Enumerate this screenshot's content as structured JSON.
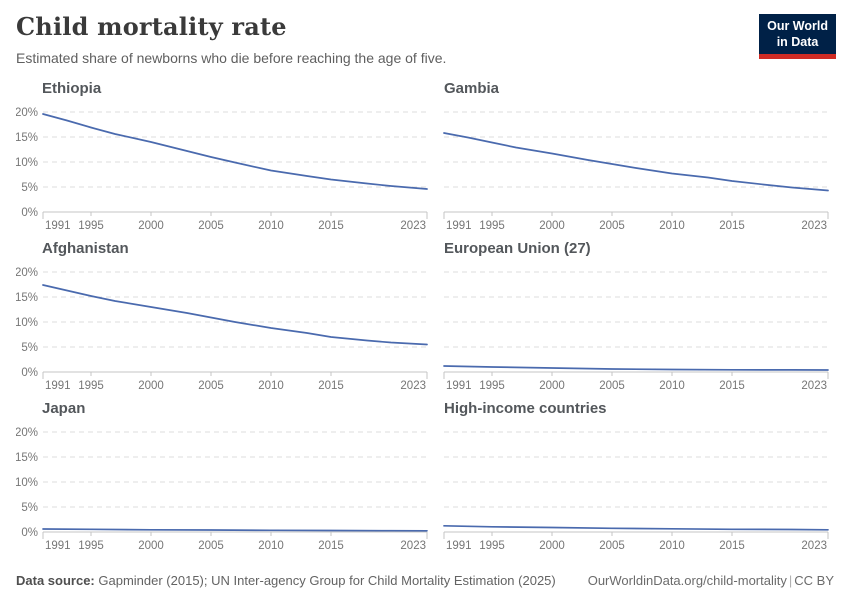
{
  "header": {
    "title": "Child mortality rate",
    "subtitle": "Estimated share of newborns who die before reaching the age of five.",
    "logo": {
      "line1": "Our World",
      "line2": "in Data",
      "bg_color": "#002147",
      "accent_color": "#cf2b24"
    }
  },
  "footer": {
    "source_label": "Data source:",
    "source_text": "Gapminder (2015); UN Inter-agency Group for Child Mortality Estimation (2025)",
    "url": "OurWorldinData.org/child-mortality",
    "separator": "|",
    "license": "CC BY"
  },
  "chart_data": {
    "type": "line",
    "title": "Child mortality rate",
    "subtitle": "Estimated share of newborns who die before reaching the age of five.",
    "xlabel": "",
    "ylabel": "",
    "x_range": [
      1991,
      2023
    ],
    "xticks": [
      1991,
      1995,
      2000,
      2005,
      2010,
      2015,
      2023
    ],
    "ylim": [
      0,
      20
    ],
    "yticks": [
      0,
      5,
      10,
      15,
      20
    ],
    "y_unit": "%",
    "grid": true,
    "legend": "none",
    "line_color": "#4a6aae",
    "facets": [
      {
        "title": "Ethiopia",
        "show_y_labels": true,
        "series": [
          [
            1991,
            19.6
          ],
          [
            1993,
            18.3
          ],
          [
            1995,
            16.9
          ],
          [
            1997,
            15.6
          ],
          [
            2000,
            14.0
          ],
          [
            2003,
            12.2
          ],
          [
            2005,
            11.0
          ],
          [
            2007,
            9.9
          ],
          [
            2010,
            8.3
          ],
          [
            2013,
            7.2
          ],
          [
            2015,
            6.5
          ],
          [
            2018,
            5.7
          ],
          [
            2020,
            5.2
          ],
          [
            2023,
            4.6
          ]
        ]
      },
      {
        "title": "Gambia",
        "show_y_labels": false,
        "series": [
          [
            1991,
            15.8
          ],
          [
            1993,
            14.9
          ],
          [
            1995,
            13.9
          ],
          [
            1997,
            12.9
          ],
          [
            2000,
            11.7
          ],
          [
            2003,
            10.4
          ],
          [
            2005,
            9.6
          ],
          [
            2007,
            8.8
          ],
          [
            2010,
            7.7
          ],
          [
            2013,
            6.9
          ],
          [
            2015,
            6.2
          ],
          [
            2018,
            5.4
          ],
          [
            2020,
            4.9
          ],
          [
            2023,
            4.3
          ]
        ]
      },
      {
        "title": "Afghanistan",
        "show_y_labels": true,
        "series": [
          [
            1991,
            17.4
          ],
          [
            1993,
            16.3
          ],
          [
            1995,
            15.2
          ],
          [
            1997,
            14.2
          ],
          [
            2000,
            13.0
          ],
          [
            2003,
            11.8
          ],
          [
            2005,
            10.9
          ],
          [
            2007,
            10.0
          ],
          [
            2010,
            8.8
          ],
          [
            2013,
            7.8
          ],
          [
            2015,
            7.0
          ],
          [
            2018,
            6.3
          ],
          [
            2020,
            5.9
          ],
          [
            2023,
            5.5
          ]
        ]
      },
      {
        "title": "European Union (27)",
        "show_y_labels": false,
        "series": [
          [
            1991,
            1.2
          ],
          [
            1995,
            1.0
          ],
          [
            2000,
            0.8
          ],
          [
            2005,
            0.6
          ],
          [
            2010,
            0.5
          ],
          [
            2015,
            0.45
          ],
          [
            2020,
            0.42
          ],
          [
            2023,
            0.4
          ]
        ]
      },
      {
        "title": "Japan",
        "show_y_labels": true,
        "series": [
          [
            1991,
            0.6
          ],
          [
            1995,
            0.55
          ],
          [
            2000,
            0.45
          ],
          [
            2005,
            0.4
          ],
          [
            2010,
            0.35
          ],
          [
            2015,
            0.3
          ],
          [
            2020,
            0.27
          ],
          [
            2023,
            0.25
          ]
        ]
      },
      {
        "title": "High-income countries",
        "show_y_labels": false,
        "series": [
          [
            1991,
            1.25
          ],
          [
            1995,
            1.05
          ],
          [
            2000,
            0.9
          ],
          [
            2005,
            0.75
          ],
          [
            2010,
            0.65
          ],
          [
            2015,
            0.55
          ],
          [
            2020,
            0.5
          ],
          [
            2023,
            0.45
          ]
        ]
      }
    ]
  }
}
